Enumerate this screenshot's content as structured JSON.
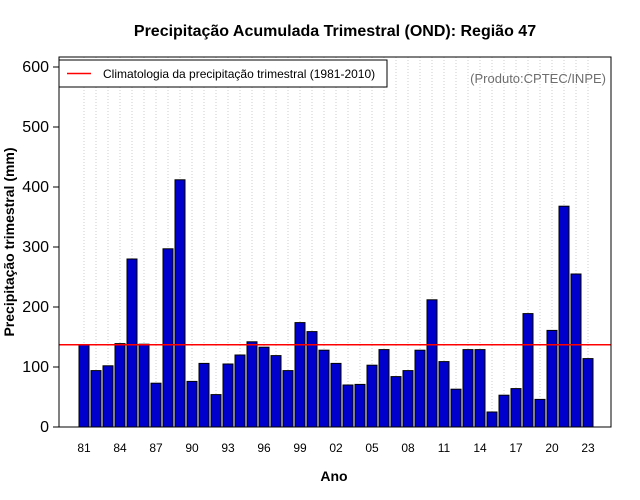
{
  "chart_data": {
    "type": "bar",
    "title": "Precipitação Acumulada Trimestral (OND): Região 47",
    "xlabel": "Ano",
    "ylabel": "Precipitação trimestral (mm)",
    "ylim": [
      0,
      620
    ],
    "yticks": [
      0,
      100,
      200,
      300,
      400,
      500,
      600
    ],
    "categories": [
      "81",
      "82",
      "83",
      "84",
      "85",
      "86",
      "87",
      "88",
      "89",
      "90",
      "91",
      "92",
      "93",
      "94",
      "95",
      "96",
      "97",
      "98",
      "99",
      "00",
      "01",
      "02",
      "03",
      "04",
      "05",
      "06",
      "07",
      "08",
      "09",
      "10",
      "11",
      "12",
      "13",
      "14",
      "15",
      "16",
      "17",
      "18",
      "19",
      "20",
      "21",
      "22",
      "23"
    ],
    "tick_labels": [
      "81",
      "84",
      "87",
      "90",
      "93",
      "96",
      "99",
      "02",
      "05",
      "08",
      "11",
      "14",
      "17",
      "20",
      "23"
    ],
    "values": [
      137,
      94,
      102,
      139,
      280,
      138,
      73,
      297,
      412,
      76,
      106,
      54,
      105,
      120,
      142,
      133,
      119,
      94,
      174,
      159,
      128,
      106,
      70,
      71,
      103,
      129,
      84,
      94,
      128,
      212,
      109,
      63,
      129,
      129,
      25,
      53,
      64,
      189,
      46,
      161,
      368,
      255,
      114
    ],
    "climatology": 137,
    "grid": "vertical-dotted",
    "legend_position": "top-left",
    "legend": [
      {
        "label": "Climatologia da precipitação trimestral (1981-2010)",
        "color": "#ff0000"
      }
    ],
    "credit": "(Produto:CPTEC/INPE)",
    "colors": {
      "bar_fill": "#0000cd",
      "bar_stroke": "#000000",
      "climatology_line": "#ff0000",
      "grid": "#cccccc"
    }
  }
}
